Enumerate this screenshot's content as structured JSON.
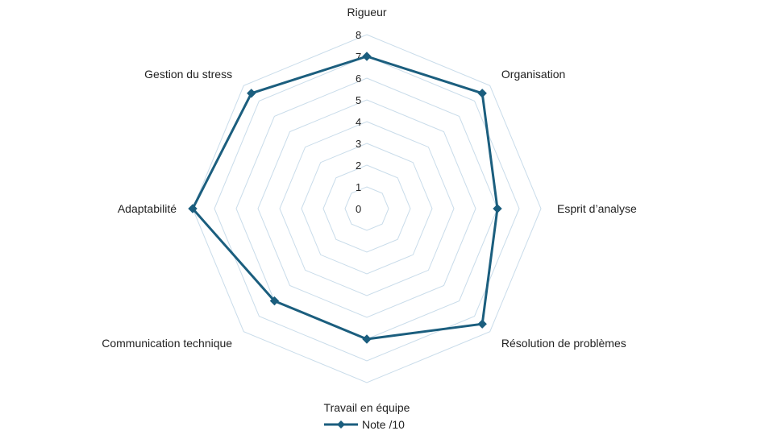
{
  "chart_data": {
    "type": "radar",
    "categories": [
      "Rigueur",
      "Organisation",
      "Esprit d’analyse",
      "Résolution de problèmes",
      "Travail en équipe",
      "Communication technique",
      "Adaptabilité",
      "Gestion du stress"
    ],
    "series": [
      {
        "name": "Note /10",
        "values": [
          7,
          7.5,
          6,
          7.5,
          6,
          6,
          8,
          7.5
        ]
      }
    ],
    "rlim": [
      0,
      8
    ],
    "ticks": [
      "0",
      "1",
      "2",
      "3",
      "4",
      "5",
      "6",
      "7",
      "8"
    ],
    "grid": true,
    "legend": "bottom",
    "colors": {
      "series": "#1b5e7e",
      "grid": "#c9dcea",
      "text": "#222222"
    }
  }
}
